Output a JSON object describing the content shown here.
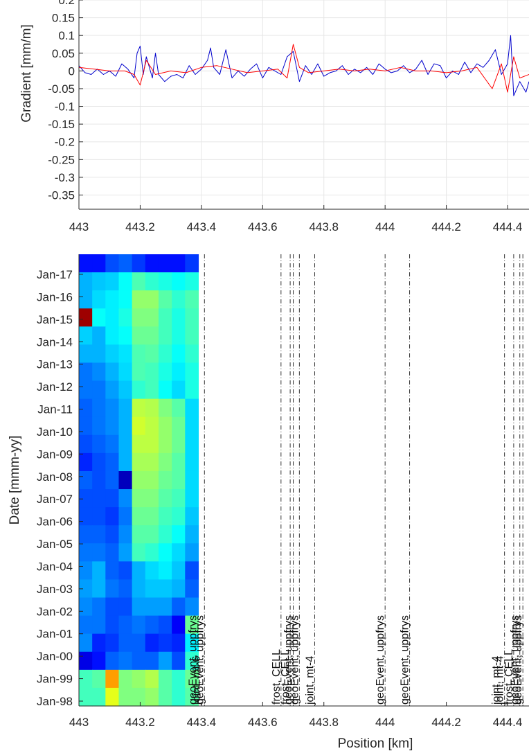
{
  "chart_data": [
    {
      "type": "line",
      "title": "",
      "xlabel": "",
      "ylabel": "Gradient [mm/m]",
      "xlim": [
        443,
        444.47
      ],
      "ylim": [
        -0.39,
        0.2
      ],
      "xticks": [
        "443",
        "443.2",
        "443.4",
        "443.6",
        "443.8",
        "444",
        "444.2",
        "444.4"
      ],
      "yticks": [
        "0.2",
        "0.15",
        "0.1",
        "0.05",
        "0",
        "-0.05",
        "-0.1",
        "-0.15",
        "-0.2",
        "-0.25",
        "-0.3",
        "-0.35"
      ],
      "grid": true,
      "series": [
        {
          "color": "#0000cc",
          "x": [
            443.0,
            443.02,
            443.04,
            443.06,
            443.08,
            443.1,
            443.12,
            443.14,
            443.16,
            443.18,
            443.19,
            443.2,
            443.21,
            443.22,
            443.24,
            443.25,
            443.26,
            443.28,
            443.3,
            443.32,
            443.34,
            443.36,
            443.38,
            443.4,
            443.42,
            443.43,
            443.44,
            443.46,
            443.48,
            443.5,
            443.52,
            443.54,
            443.56,
            443.58,
            443.6,
            443.62,
            443.64,
            443.66,
            443.68,
            443.7,
            443.72,
            443.74,
            443.76,
            443.78,
            443.8,
            443.82,
            443.84,
            443.86,
            443.88,
            443.9,
            443.92,
            443.94,
            443.96,
            443.98,
            444.0,
            444.02,
            444.04,
            444.06,
            444.08,
            444.1,
            444.12,
            444.14,
            444.16,
            444.18,
            444.2,
            444.22,
            444.24,
            444.26,
            444.28,
            444.3,
            444.32,
            444.34,
            444.36,
            444.38,
            444.4,
            444.41,
            444.42,
            444.44,
            444.46,
            444.47
          ],
          "y": [
            0.015,
            -0.005,
            -0.01,
            0.005,
            -0.01,
            0.0,
            -0.015,
            0.02,
            0.005,
            -0.02,
            0.05,
            0.07,
            -0.01,
            0.04,
            -0.02,
            0.05,
            -0.01,
            -0.03,
            -0.015,
            -0.01,
            -0.02,
            0.015,
            -0.01,
            0.005,
            0.03,
            0.065,
            0.01,
            -0.01,
            0.06,
            -0.02,
            0.0,
            -0.015,
            0.005,
            0.02,
            -0.02,
            0.01,
            0.0,
            -0.01,
            0.04,
            0.055,
            -0.03,
            0.015,
            -0.01,
            0.02,
            -0.015,
            -0.005,
            0.0,
            0.015,
            -0.01,
            0.005,
            -0.005,
            0.01,
            -0.01,
            0.02,
            0.005,
            -0.005,
            0.0,
            0.015,
            -0.005,
            0.005,
            0.03,
            -0.01,
            0.02,
            0.015,
            -0.02,
            0.0,
            -0.01,
            0.025,
            -0.005,
            0.02,
            0.01,
            0.03,
            0.06,
            -0.01,
            0.02,
            0.1,
            -0.07,
            -0.03,
            -0.06,
            -0.03
          ]
        },
        {
          "color": "#ff0000",
          "x": [
            443.0,
            443.05,
            443.1,
            443.15,
            443.18,
            443.2,
            443.22,
            443.25,
            443.3,
            443.35,
            443.4,
            443.45,
            443.5,
            443.55,
            443.6,
            443.65,
            443.68,
            443.7,
            443.72,
            443.75,
            443.8,
            443.85,
            443.9,
            443.95,
            444.0,
            444.05,
            444.1,
            444.15,
            444.2,
            444.25,
            444.3,
            444.35,
            444.38,
            444.4,
            444.42,
            444.44,
            444.47
          ],
          "y": [
            0.01,
            0.005,
            0.0,
            0.0,
            -0.01,
            -0.04,
            0.03,
            -0.01,
            0.0,
            -0.005,
            0.01,
            0.015,
            0.005,
            -0.005,
            0.0,
            0.005,
            -0.02,
            0.075,
            0.01,
            -0.005,
            0.0,
            0.005,
            0.0,
            0.005,
            0.0,
            0.01,
            0.0,
            0.0,
            -0.005,
            0.0,
            0.01,
            -0.05,
            0.02,
            -0.06,
            0.04,
            -0.02,
            -0.01
          ]
        }
      ]
    },
    {
      "type": "heatmap",
      "title": "",
      "xlabel": "Position [km]",
      "ylabel": "Date [mmm-yy]",
      "xlim": [
        443,
        444.47
      ],
      "xticks": [
        "443",
        "443.2",
        "443.4",
        "443.6",
        "443.8",
        "444",
        "444.2",
        "444.4"
      ],
      "yticks": [
        "Jan-17",
        "Jan-16",
        "Jan-15",
        "Jan-14",
        "Jan-13",
        "Jan-12",
        "Jan-11",
        "Jan-10",
        "Jan-09",
        "Jan-08",
        "Jan-07",
        "Jan-06",
        "Jan-05",
        "Jan-04",
        "Jan-03",
        "Jan-02",
        "Jan-01",
        "Jan-00",
        "Jan-99",
        "Jan-98"
      ],
      "heatmap_x_range": [
        443.0,
        443.39
      ],
      "heatmap_rows_top_to_bottom": [
        [
          0.14,
          0.14,
          0.2,
          0.22,
          0.18,
          0.14,
          0.14,
          0.14,
          0.18
        ],
        [
          0.3,
          0.32,
          0.33,
          0.38,
          0.45,
          0.42,
          0.4,
          0.38,
          0.4
        ],
        [
          0.3,
          0.34,
          0.36,
          0.38,
          0.52,
          0.52,
          0.46,
          0.42,
          0.45
        ],
        [
          0.97,
          0.38,
          0.36,
          0.4,
          0.5,
          0.5,
          0.44,
          0.4,
          0.44
        ],
        [
          0.33,
          0.3,
          0.36,
          0.38,
          0.48,
          0.48,
          0.44,
          0.4,
          0.44
        ],
        [
          0.3,
          0.3,
          0.33,
          0.35,
          0.45,
          0.46,
          0.42,
          0.38,
          0.42
        ],
        [
          0.24,
          0.26,
          0.3,
          0.34,
          0.45,
          0.44,
          0.4,
          0.36,
          0.4
        ],
        [
          0.24,
          0.24,
          0.28,
          0.32,
          0.42,
          0.44,
          0.38,
          0.34,
          0.4
        ],
        [
          0.22,
          0.24,
          0.26,
          0.3,
          0.56,
          0.55,
          0.5,
          0.46,
          0.34
        ],
        [
          0.22,
          0.24,
          0.26,
          0.3,
          0.58,
          0.56,
          0.52,
          0.48,
          0.34
        ],
        [
          0.2,
          0.22,
          0.24,
          0.3,
          0.56,
          0.56,
          0.52,
          0.48,
          0.34
        ],
        [
          0.16,
          0.2,
          0.22,
          0.3,
          0.54,
          0.54,
          0.5,
          0.46,
          0.34
        ],
        [
          0.22,
          0.2,
          0.22,
          0.06,
          0.52,
          0.52,
          0.48,
          0.46,
          0.34
        ],
        [
          0.2,
          0.2,
          0.2,
          0.26,
          0.5,
          0.5,
          0.46,
          0.44,
          0.34
        ],
        [
          0.2,
          0.2,
          0.18,
          0.24,
          0.48,
          0.48,
          0.44,
          0.42,
          0.32
        ],
        [
          0.22,
          0.22,
          0.2,
          0.26,
          0.46,
          0.46,
          0.42,
          0.38,
          0.3
        ],
        [
          0.24,
          0.24,
          0.22,
          0.28,
          0.44,
          0.42,
          0.38,
          0.34,
          0.28
        ],
        [
          0.26,
          0.3,
          0.22,
          0.2,
          0.3,
          0.34,
          0.36,
          0.32,
          0.2
        ],
        [
          0.28,
          0.3,
          0.24,
          0.22,
          0.3,
          0.32,
          0.32,
          0.3,
          0.22
        ],
        [
          0.26,
          0.24,
          0.2,
          0.2,
          0.28,
          0.28,
          0.28,
          0.22,
          0.26
        ],
        [
          0.24,
          0.24,
          0.2,
          0.22,
          0.24,
          0.22,
          0.2,
          0.12,
          0.48
        ],
        [
          0.26,
          0.16,
          0.18,
          0.22,
          0.22,
          0.16,
          0.18,
          0.16,
          0.36
        ],
        [
          0.1,
          0.14,
          0.22,
          0.24,
          0.22,
          0.22,
          0.28,
          0.2,
          0.42
        ],
        [
          0.44,
          0.46,
          0.72,
          0.5,
          0.52,
          0.55,
          0.46,
          0.42,
          0.48
        ],
        [
          0.44,
          0.44,
          0.6,
          0.5,
          0.5,
          0.52,
          0.46,
          0.42,
          0.46
        ]
      ],
      "events": [
        {
          "x": 443.41,
          "label": "geoEvent, uppfrys"
        },
        {
          "x": 443.41,
          "label": "joint, mt-6"
        },
        {
          "x": 443.41,
          "label": "geoEvent, uppfrys"
        },
        {
          "x": 443.66,
          "label": "frost, CELL"
        },
        {
          "x": 443.69,
          "label": "frost, CELL"
        },
        {
          "x": 443.7,
          "label": "geoEvent, uppfrys"
        },
        {
          "x": 443.72,
          "label": "geoEvent, uppfrys"
        },
        {
          "x": 443.77,
          "label": "joint, mt-4"
        },
        {
          "x": 444.0,
          "label": "geoEvent, uppfrys"
        },
        {
          "x": 444.08,
          "label": "geoEvent, uppfrys"
        },
        {
          "x": 444.39,
          "label": "joint, mt-4"
        },
        {
          "x": 444.39,
          "label": "joint, mt-4"
        },
        {
          "x": 444.42,
          "label": "frost, CELL"
        },
        {
          "x": 444.44,
          "label": "geoEvent, uppfrys"
        },
        {
          "x": 444.45,
          "label": "geoEvent, uppfrys"
        }
      ]
    }
  ]
}
